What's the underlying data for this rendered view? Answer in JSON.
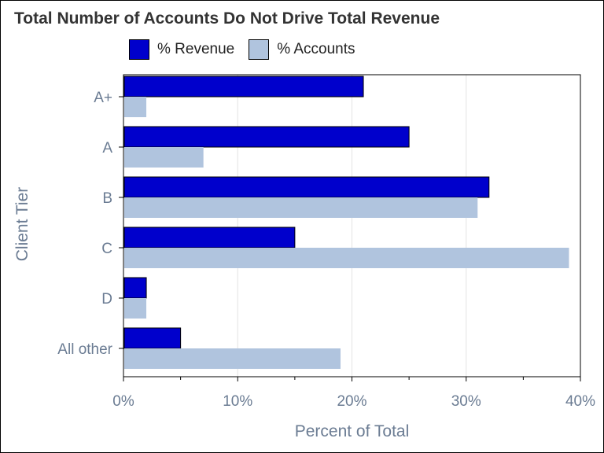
{
  "chart_data": {
    "type": "bar",
    "orientation": "horizontal",
    "title": "Total Number of Accounts Do Not Drive Total Revenue",
    "xlabel": "Percent of Total",
    "ylabel": "Client Tier",
    "categories": [
      "A+",
      "A",
      "B",
      "C",
      "D",
      "All other"
    ],
    "series": [
      {
        "name": "% Revenue",
        "color": "#0000cc",
        "values": [
          21,
          25,
          32,
          15,
          2,
          5
        ]
      },
      {
        "name": "% Accounts",
        "color": "#b0c4de",
        "values": [
          2,
          7,
          31,
          39,
          2,
          19
        ]
      }
    ],
    "xlim": [
      0,
      40
    ],
    "xticks": [
      0,
      10,
      20,
      30,
      40
    ],
    "xtick_labels": [
      "0%",
      "10%",
      "20%",
      "30%",
      "40%"
    ],
    "grid": "vertical",
    "legend_position": "top"
  }
}
